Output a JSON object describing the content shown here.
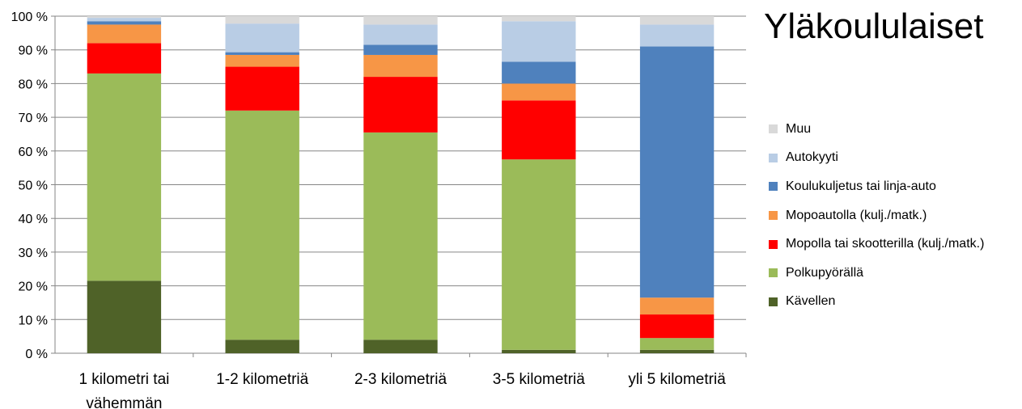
{
  "chart_data": {
    "type": "bar",
    "stacked": true,
    "percent": true,
    "title": "Yläkoululaiset",
    "categories": [
      "1 kilometri tai vähemmän",
      "1-2 kilometriä",
      "2-3 kilometriä",
      "3-5 kilometriä",
      "yli 5 kilometriä"
    ],
    "category_lines": [
      [
        "1 kilometri tai",
        "vähemmän"
      ],
      [
        "1-2 kilometriä"
      ],
      [
        "2-3 kilometriä"
      ],
      [
        "3-5 kilometriä"
      ],
      [
        "yli 5 kilometriä"
      ]
    ],
    "y_ticks": [
      "0 %",
      "10 %",
      "20 %",
      "30 %",
      "40 %",
      "50 %",
      "60 %",
      "70 %",
      "80 %",
      "90 %",
      "100 %"
    ],
    "ylim": [
      0,
      100
    ],
    "grid": true,
    "legend_position": "right",
    "series": [
      {
        "name": "Kävellen",
        "color": "#4f6228",
        "values": [
          21.5,
          4.0,
          4.0,
          1.0,
          1.0
        ]
      },
      {
        "name": "Polkupyörällä",
        "color": "#9bbb59",
        "values": [
          61.5,
          68.0,
          61.5,
          56.5,
          3.5
        ]
      },
      {
        "name": "Mopolla tai skootterilla (kulj./matk.)",
        "color": "#ff0000",
        "values": [
          9.0,
          13.0,
          16.5,
          17.5,
          7.0
        ]
      },
      {
        "name": "Mopoautolla (kulj./matk.)",
        "color": "#f79646",
        "values": [
          5.5,
          3.5,
          6.5,
          5.0,
          5.0
        ]
      },
      {
        "name": "Koulukuljetus tai linja-auto",
        "color": "#4f81bd",
        "values": [
          1.0,
          0.8,
          3.0,
          6.5,
          74.5
        ]
      },
      {
        "name": "Autokyyti",
        "color": "#b9cde5",
        "values": [
          1.0,
          8.5,
          6.0,
          12.0,
          6.5
        ]
      },
      {
        "name": "Muu",
        "color": "#d9d9d9",
        "values": [
          0.5,
          2.2,
          2.5,
          1.5,
          2.5
        ]
      }
    ]
  }
}
